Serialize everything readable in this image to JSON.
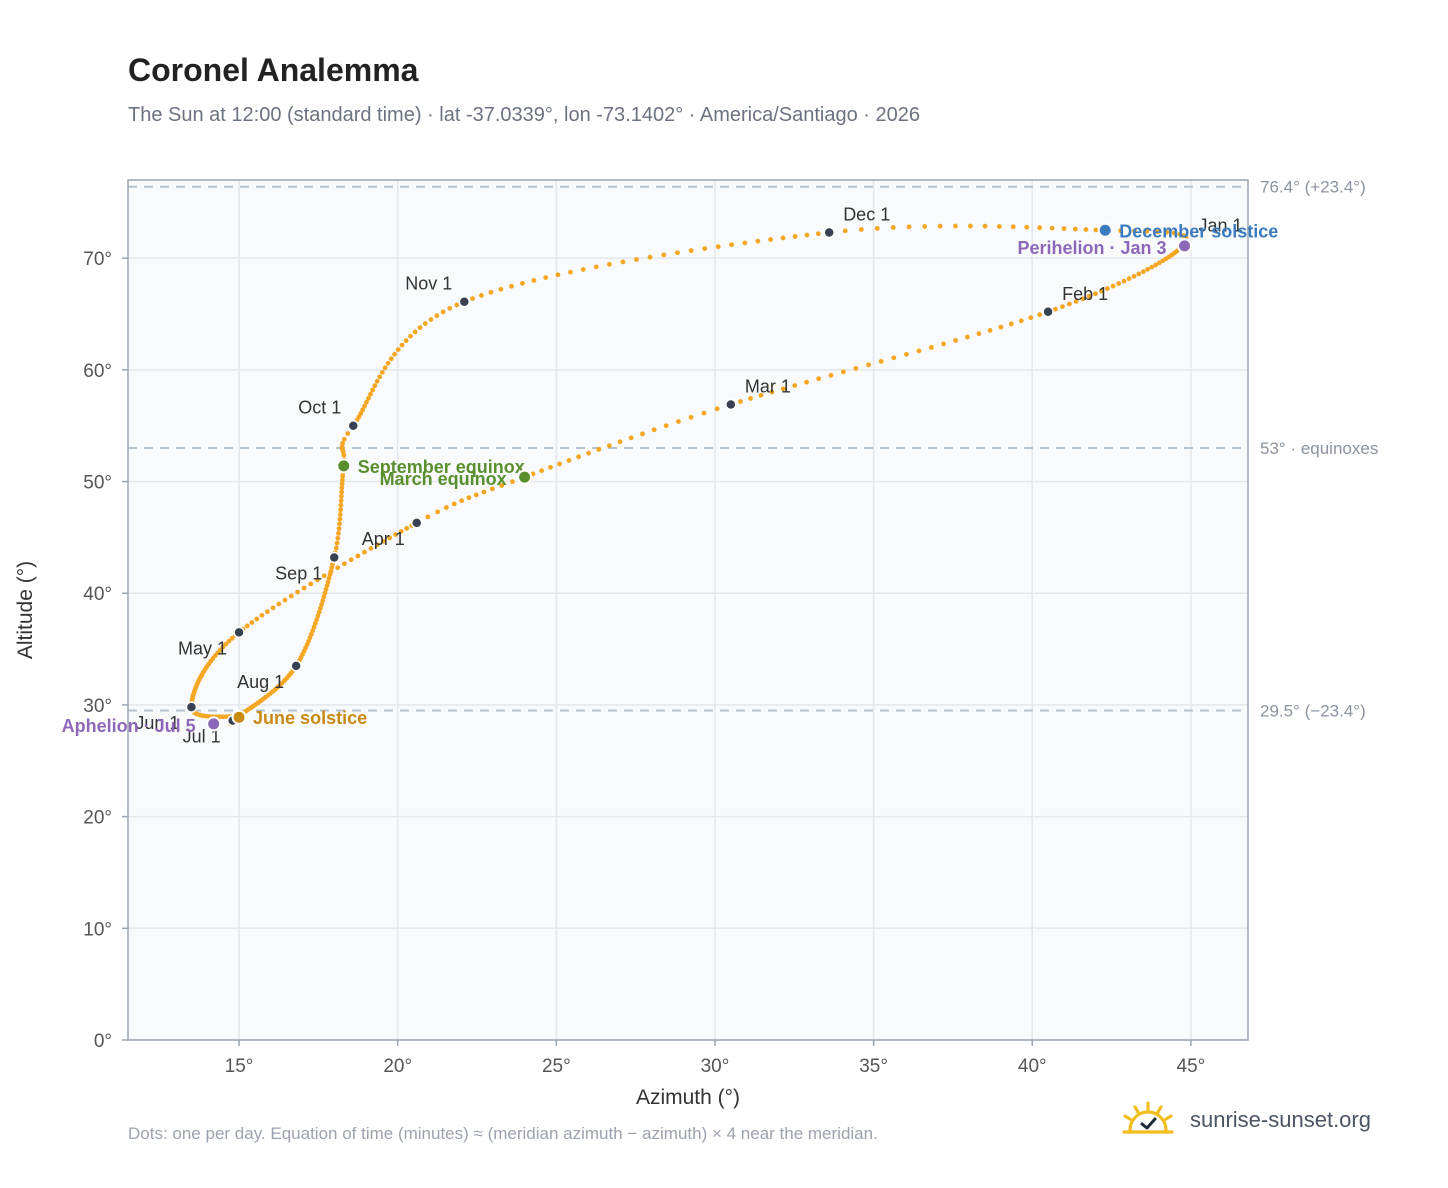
{
  "title": "Coronel Analemma",
  "subtitle": "The Sun at 12:00 (standard time) · lat -37.0339°, lon -73.1402° · America/Santiago · 2026",
  "footnote": "Dots: one per day. Equation of time (minutes) ≈ (meridian azimuth − azimuth) × 4 near the meridian.",
  "brand": "sunrise-sunset.org",
  "colors": {
    "curve": "#f5a623",
    "month_marker": "#374151",
    "equinox": "#5a8f2e",
    "december_solstice": "#3b7bbf",
    "june_solstice": "#c98a12",
    "apsis": "#8e68b8",
    "reference_line": "#b6c2cc",
    "plot_bg": "#f8fafc",
    "grid": "#e5e7eb",
    "axis": "#9aa5b1"
  },
  "chart_data": {
    "type": "scatter",
    "xlabel": "Azimuth (°)",
    "ylabel": "Altitude (°)",
    "xlim": [
      11.5,
      46.8
    ],
    "ylim": [
      0,
      77
    ],
    "x_ticks": [
      15,
      20,
      25,
      30,
      35,
      40,
      45
    ],
    "x_tick_labels": [
      "15°",
      "20°",
      "25°",
      "30°",
      "35°",
      "40°",
      "45°"
    ],
    "y_ticks": [
      0,
      10,
      20,
      30,
      40,
      50,
      60,
      70
    ],
    "y_tick_labels": [
      "0°",
      "10°",
      "20°",
      "30°",
      "40°",
      "50°",
      "60°",
      "70°"
    ],
    "grid": true,
    "reference_lines": [
      {
        "y": 76.4,
        "label": "76.4° (+23.4°)"
      },
      {
        "y": 53.0,
        "label": "53° · equinoxes"
      },
      {
        "y": 29.5,
        "label": "29.5° (−23.4°)"
      }
    ],
    "days_shown": 365,
    "anchor_points": [
      {
        "doy": 1,
        "x": 44.8,
        "y": 71.3
      },
      {
        "doy": 32,
        "x": 40.5,
        "y": 65.2
      },
      {
        "doy": 60,
        "x": 30.5,
        "y": 56.9
      },
      {
        "doy": 79,
        "x": 24.0,
        "y": 50.4
      },
      {
        "doy": 91,
        "x": 20.6,
        "y": 46.3
      },
      {
        "doy": 121,
        "x": 15.0,
        "y": 36.5
      },
      {
        "doy": 152,
        "x": 13.5,
        "y": 29.8
      },
      {
        "doy": 172,
        "x": 15.0,
        "y": 28.9
      },
      {
        "doy": 182,
        "x": 14.8,
        "y": 28.6
      },
      {
        "doy": 213,
        "x": 16.8,
        "y": 33.5
      },
      {
        "doy": 244,
        "x": 18.0,
        "y": 43.2
      },
      {
        "doy": 265,
        "x": 18.3,
        "y": 51.4
      },
      {
        "doy": 274,
        "x": 18.6,
        "y": 55.0
      },
      {
        "doy": 305,
        "x": 22.1,
        "y": 66.1
      },
      {
        "doy": 335,
        "x": 33.6,
        "y": 72.3
      },
      {
        "doy": 355,
        "x": 42.3,
        "y": 72.5
      },
      {
        "doy": 366,
        "x": 44.8,
        "y": 71.3
      }
    ],
    "month_markers": [
      {
        "label": "Jan 1",
        "x": 44.8,
        "y": 71.3,
        "pos": "above-right"
      },
      {
        "label": "Feb 1",
        "x": 40.5,
        "y": 65.2,
        "pos": "above-right"
      },
      {
        "label": "Mar 1",
        "x": 30.5,
        "y": 56.9,
        "pos": "above-right"
      },
      {
        "label": "Apr 1",
        "x": 20.6,
        "y": 46.3,
        "pos": "below-left"
      },
      {
        "label": "May 1",
        "x": 15.0,
        "y": 36.5,
        "pos": "below-left"
      },
      {
        "label": "Jun 1",
        "x": 13.5,
        "y": 29.8,
        "pos": "below-left"
      },
      {
        "label": "Jul 1",
        "x": 14.8,
        "y": 28.6,
        "pos": "below-left"
      },
      {
        "label": "Aug 1",
        "x": 16.8,
        "y": 33.5,
        "pos": "below-left"
      },
      {
        "label": "Sep 1",
        "x": 18.0,
        "y": 43.2,
        "pos": "below-left"
      },
      {
        "label": "Oct 1",
        "x": 18.6,
        "y": 55.0,
        "pos": "above-left"
      },
      {
        "label": "Nov 1",
        "x": 22.1,
        "y": 66.1,
        "pos": "above-left"
      },
      {
        "label": "Dec 1",
        "x": 33.6,
        "y": 72.3,
        "pos": "above-right"
      }
    ],
    "events": [
      {
        "label": "December solstice",
        "x": 42.3,
        "y": 72.5,
        "color_key": "december_solstice",
        "pos": "right"
      },
      {
        "label": "Perihelion · Jan 3",
        "x": 44.8,
        "y": 71.1,
        "color_key": "apsis",
        "pos": "left"
      },
      {
        "label": "September equinox",
        "x": 18.3,
        "y": 51.4,
        "color_key": "equinox",
        "pos": "right"
      },
      {
        "label": "March equinox",
        "x": 24.0,
        "y": 50.4,
        "color_key": "equinox",
        "pos": "left"
      },
      {
        "label": "June solstice",
        "x": 15.0,
        "y": 28.9,
        "color_key": "june_solstice",
        "pos": "right"
      },
      {
        "label": "Aphelion · Jul 5",
        "x": 14.2,
        "y": 28.3,
        "color_key": "apsis",
        "pos": "left"
      }
    ]
  }
}
